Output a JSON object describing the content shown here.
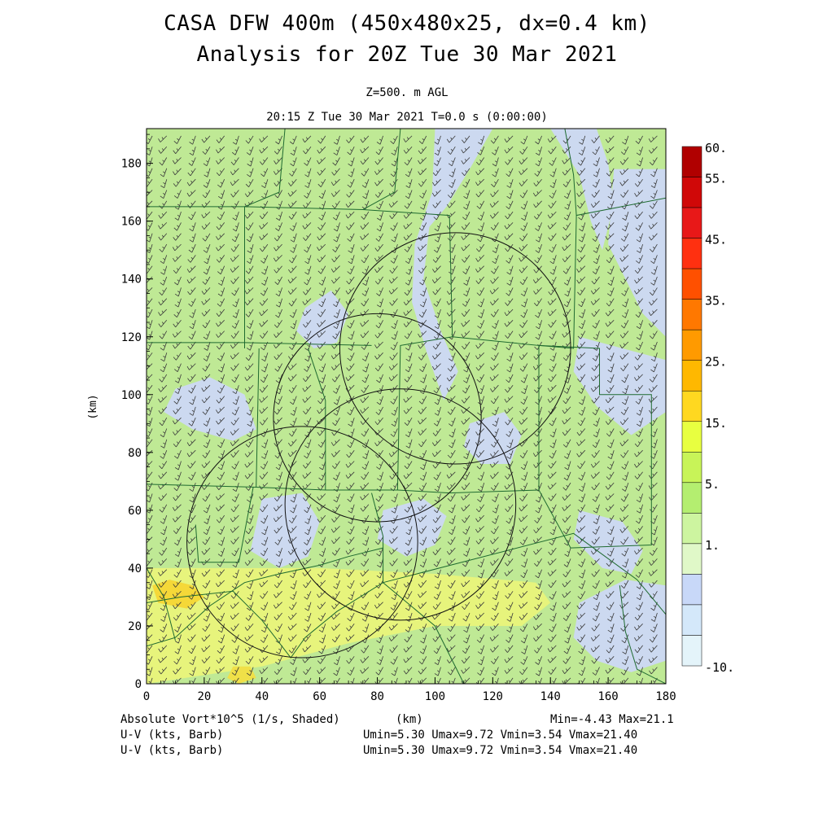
{
  "header": {
    "title_line1": "CASA DFW 400m (450x480x25, dx=0.4 km)",
    "title_line2": "Analysis for 20Z Tue 30 Mar 2021",
    "level": "Z=500. m AGL",
    "time": "20:15 Z Tue 30 Mar 2021   T=0.0 s (0:00:00)"
  },
  "footer": {
    "field_label": "Absolute Vort*10^5 (1/s, Shaded)",
    "x_unit": "(km)",
    "min_max": "Min=-4.43 Max=21.1",
    "wind1_label": "U-V (kts, Barb)",
    "wind1_stats": "Umin=5.30 Umax=9.72 Vmin=3.54 Vmax=21.40",
    "wind2_label": "U-V (kts, Barb)",
    "wind2_stats": "Umin=5.30 Umax=9.72 Vmin=3.54 Vmax=21.40"
  },
  "chart_data": {
    "type": "heatmap",
    "ylabel": "(km)",
    "xlabel": "(km)",
    "xlim": [
      0,
      180
    ],
    "ylim": [
      0,
      192
    ],
    "x_ticks": [
      "0",
      "20",
      "40",
      "60",
      "80",
      "100",
      "120",
      "140",
      "160",
      "180"
    ],
    "x_tick_values": [
      0,
      20,
      40,
      60,
      80,
      100,
      120,
      140,
      160,
      180
    ],
    "y_ticks": [
      "0",
      "20",
      "40",
      "60",
      "80",
      "100",
      "120",
      "140",
      "160",
      "180"
    ],
    "y_tick_values": [
      0,
      20,
      40,
      60,
      80,
      100,
      120,
      140,
      160,
      180
    ],
    "colorbar": {
      "labels": [
        "60.",
        "55.",
        "45.",
        "35.",
        "25.",
        "15.",
        "5.",
        "1.",
        "-10."
      ],
      "label_values": [
        60,
        55,
        45,
        35,
        25,
        15,
        5,
        1,
        -10
      ],
      "colors": [
        "#b00000",
        "#d00808",
        "#e81818",
        "#ff3010",
        "#ff5000",
        "#ff7800",
        "#ff9a00",
        "#ffb800",
        "#ffd820",
        "#e8ff40",
        "#c8f458",
        "#b4ee70",
        "#cdf5a0",
        "#e0f8c8",
        "#c8d8f8",
        "#d4e8fa",
        "#e4f4fa"
      ]
    },
    "field_background": "#bfe995",
    "field_regions": [
      {
        "level": "low",
        "color": "#ccd9f0",
        "points": [
          [
            100,
            192
          ],
          [
            120,
            192
          ],
          [
            112,
            178
          ],
          [
            104,
            165
          ],
          [
            98,
            158
          ],
          [
            96,
            140
          ],
          [
            102,
            122
          ],
          [
            108,
            108
          ],
          [
            103,
            98
          ],
          [
            97,
            115
          ],
          [
            92,
            132
          ],
          [
            93,
            152
          ],
          [
            99,
            170
          ]
        ]
      },
      {
        "level": "low",
        "color": "#ccd9f0",
        "points": [
          [
            140,
            192
          ],
          [
            156,
            192
          ],
          [
            160,
            180
          ],
          [
            162,
            166
          ],
          [
            158,
            150
          ],
          [
            154,
            160
          ],
          [
            150,
            176
          ]
        ]
      },
      {
        "level": "low",
        "color": "#ccd9f0",
        "points": [
          [
            162,
            178
          ],
          [
            180,
            178
          ],
          [
            180,
            120
          ],
          [
            172,
            128
          ],
          [
            166,
            140
          ],
          [
            160,
            152
          ]
        ]
      },
      {
        "level": "low",
        "color": "#ccd9f0",
        "points": [
          [
            150,
            120
          ],
          [
            180,
            112
          ],
          [
            180,
            94
          ],
          [
            168,
            86
          ],
          [
            156,
            96
          ],
          [
            148,
            108
          ]
        ]
      },
      {
        "level": "low",
        "color": "#ccd9f0",
        "points": [
          [
            150,
            60
          ],
          [
            165,
            56
          ],
          [
            172,
            46
          ],
          [
            168,
            38
          ],
          [
            158,
            40
          ],
          [
            148,
            50
          ]
        ]
      },
      {
        "level": "low",
        "color": "#ccd9f0",
        "points": [
          [
            150,
            28
          ],
          [
            166,
            36
          ],
          [
            180,
            34
          ],
          [
            180,
            8
          ],
          [
            168,
            4
          ],
          [
            156,
            8
          ],
          [
            148,
            16
          ]
        ]
      },
      {
        "level": "low",
        "color": "#ccd9f0",
        "points": [
          [
            10,
            102
          ],
          [
            22,
            106
          ],
          [
            34,
            100
          ],
          [
            38,
            88
          ],
          [
            30,
            84
          ],
          [
            16,
            88
          ],
          [
            6,
            94
          ]
        ]
      },
      {
        "level": "low",
        "color": "#ccd9f0",
        "points": [
          [
            40,
            64
          ],
          [
            54,
            66
          ],
          [
            60,
            56
          ],
          [
            56,
            44
          ],
          [
            46,
            40
          ],
          [
            36,
            46
          ]
        ]
      },
      {
        "level": "low",
        "color": "#ccd9f0",
        "points": [
          [
            82,
            60
          ],
          [
            96,
            64
          ],
          [
            104,
            58
          ],
          [
            100,
            48
          ],
          [
            90,
            44
          ],
          [
            80,
            50
          ]
        ]
      },
      {
        "level": "low",
        "color": "#ccd9f0",
        "points": [
          [
            55,
            130
          ],
          [
            64,
            136
          ],
          [
            70,
            128
          ],
          [
            66,
            118
          ],
          [
            58,
            116
          ],
          [
            52,
            122
          ]
        ]
      },
      {
        "level": "low",
        "color": "#ccd9f0",
        "points": [
          [
            112,
            90
          ],
          [
            124,
            94
          ],
          [
            130,
            86
          ],
          [
            126,
            76
          ],
          [
            116,
            76
          ],
          [
            110,
            82
          ]
        ]
      },
      {
        "level": "high",
        "color": "#e7f47c",
        "points": [
          [
            0,
            40
          ],
          [
            60,
            40
          ],
          [
            100,
            38
          ],
          [
            135,
            35
          ],
          [
            140,
            28
          ],
          [
            130,
            20
          ],
          [
            100,
            20
          ],
          [
            70,
            14
          ],
          [
            40,
            6
          ],
          [
            0,
            0
          ]
        ]
      },
      {
        "level": "peak",
        "color": "#f5d838",
        "points": [
          [
            2,
            34
          ],
          [
            8,
            36
          ],
          [
            16,
            34
          ],
          [
            20,
            30
          ],
          [
            14,
            26
          ],
          [
            4,
            28
          ]
        ]
      },
      {
        "level": "peak",
        "color": "#f0e048",
        "points": [
          [
            30,
            6
          ],
          [
            36,
            6
          ],
          [
            38,
            2
          ],
          [
            32,
            0
          ],
          [
            28,
            2
          ]
        ]
      }
    ],
    "radar_rings": [
      {
        "cx": 107,
        "cy": 116,
        "r": 40
      },
      {
        "cx": 80,
        "cy": 92,
        "r": 36
      },
      {
        "cx": 88,
        "cy": 62,
        "r": 40
      },
      {
        "cx": 54,
        "cy": 49,
        "r": 40
      }
    ],
    "county_lines": [
      [
        [
          0,
          165
        ],
        [
          34,
          165
        ],
        [
          34,
          116
        ]
      ],
      [
        [
          0,
          118
        ],
        [
          34,
          118
        ],
        [
          78,
          117
        ]
      ],
      [
        [
          34,
          165
        ],
        [
          75,
          164
        ],
        [
          105,
          162
        ],
        [
          106,
          120
        ]
      ],
      [
        [
          0,
          69
        ],
        [
          38,
          68
        ],
        [
          39,
          116
        ]
      ],
      [
        [
          38,
          68
        ],
        [
          62,
          67
        ],
        [
          62,
          98
        ],
        [
          56,
          116
        ]
      ],
      [
        [
          62,
          67
        ],
        [
          87,
          67
        ],
        [
          88,
          117
        ],
        [
          106,
          120
        ]
      ],
      [
        [
          87,
          67
        ],
        [
          105,
          66
        ],
        [
          136,
          67
        ],
        [
          136,
          117
        ],
        [
          106,
          120
        ]
      ],
      [
        [
          136,
          117
        ],
        [
          157,
          116
        ],
        [
          157,
          100
        ],
        [
          175,
          100
        ],
        [
          175,
          48
        ],
        [
          147,
          47
        ],
        [
          136,
          67
        ]
      ],
      [
        [
          136,
          117
        ],
        [
          148,
          116
        ],
        [
          149,
          162
        ],
        [
          180,
          168
        ]
      ],
      [
        [
          88,
          192
        ],
        [
          86,
          170
        ],
        [
          75,
          164
        ]
      ],
      [
        [
          48,
          192
        ],
        [
          46,
          170
        ],
        [
          34,
          165
        ]
      ],
      [
        [
          145,
          192
        ],
        [
          148,
          176
        ],
        [
          149,
          162
        ]
      ],
      [
        [
          37,
          68
        ],
        [
          32,
          42
        ],
        [
          18,
          42
        ],
        [
          17,
          55
        ]
      ],
      [
        [
          0,
          28
        ],
        [
          12,
          30
        ],
        [
          30,
          32
        ],
        [
          40,
          22
        ],
        [
          50,
          9
        ],
        [
          55,
          16
        ],
        [
          66,
          25
        ],
        [
          82,
          35
        ],
        [
          100,
          20
        ],
        [
          110,
          0
        ]
      ],
      [
        [
          0,
          40
        ],
        [
          6,
          30
        ],
        [
          10,
          15
        ]
      ],
      [
        [
          82,
          35
        ],
        [
          82,
          51
        ],
        [
          78,
          66
        ]
      ],
      [
        [
          82,
          35
        ],
        [
          148,
          52
        ],
        [
          170,
          36
        ],
        [
          180,
          24
        ]
      ],
      [
        [
          164,
          34
        ],
        [
          166,
          18
        ],
        [
          170,
          5
        ],
        [
          180,
          0
        ]
      ],
      [
        [
          0,
          13
        ],
        [
          10,
          16
        ],
        [
          22,
          27
        ],
        [
          34,
          35
        ],
        [
          46,
          38
        ],
        [
          60,
          41
        ],
        [
          70,
          44
        ],
        [
          82,
          47
        ]
      ]
    ],
    "wind_barb": {
      "mean_u_kts": 7.5,
      "mean_v_kts": 12.5,
      "spacing_km": 5
    }
  }
}
